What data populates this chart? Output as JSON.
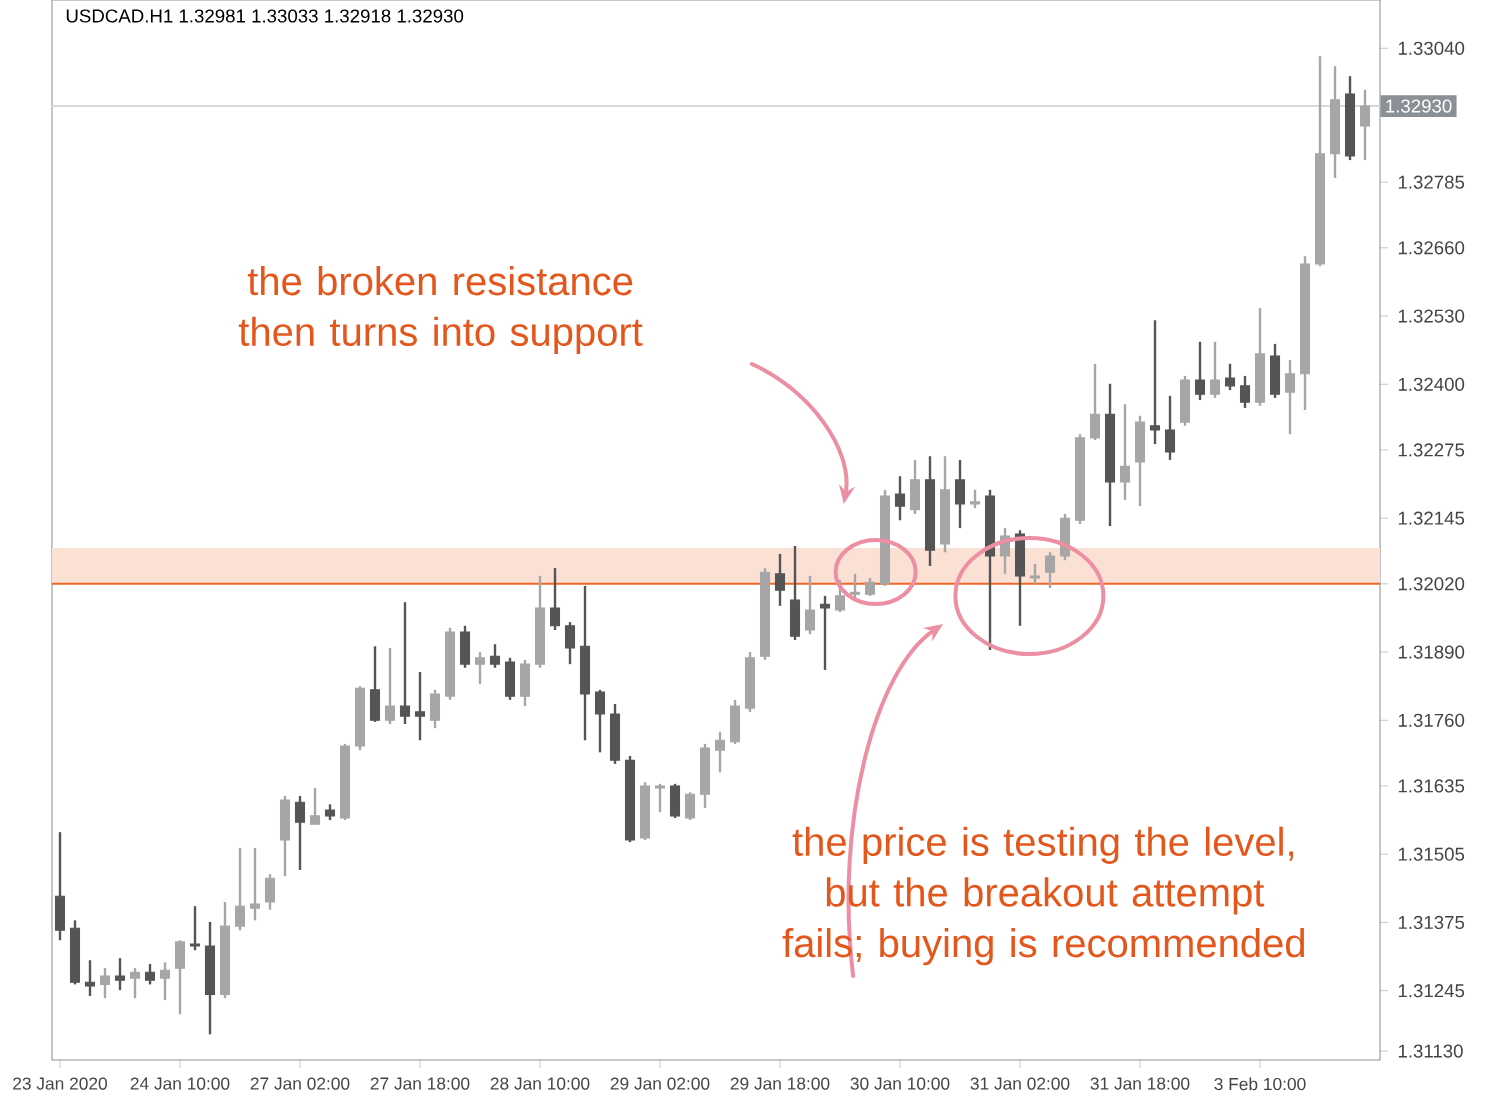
{
  "chart_data": {
    "type": "candlestick",
    "title": "USDCAD.H1 1.32981 1.33033 1.32918 1.32930",
    "categories": [
      "23 Jan 2020",
      null,
      null,
      null,
      null,
      null,
      null,
      null,
      "24 Jan 10:00",
      null,
      null,
      null,
      null,
      null,
      null,
      null,
      "27 Jan 02:00",
      null,
      null,
      null,
      null,
      null,
      null,
      null,
      "27 Jan 18:00",
      null,
      null,
      null,
      null,
      null,
      null,
      null,
      "28 Jan 10:00",
      null,
      null,
      null,
      null,
      null,
      null,
      null,
      "29 Jan 02:00",
      null,
      null,
      null,
      null,
      null,
      null,
      null,
      "29 Jan 18:00",
      null,
      null,
      null,
      null,
      null,
      null,
      null,
      "30 Jan 10:00",
      null,
      null,
      null,
      null,
      null,
      null,
      null,
      "31 Jan 02:00",
      null,
      null,
      null,
      null,
      null,
      null,
      null,
      "31 Jan 18:00",
      null,
      null,
      null,
      null,
      null,
      null,
      null,
      "3 Feb 10:00",
      null,
      null,
      null,
      null,
      null,
      null,
      null
    ],
    "ohlc": [
      [
        1.31425,
        1.31547,
        1.31341,
        1.3136
      ],
      [
        1.31364,
        1.31379,
        1.31257,
        1.31261
      ],
      [
        1.31261,
        1.31303,
        1.31235,
        1.31254
      ],
      [
        1.31257,
        1.31288,
        1.31231,
        1.31273
      ],
      [
        1.31273,
        1.31307,
        1.31246,
        1.31265
      ],
      [
        1.31269,
        1.31288,
        1.31231,
        1.3128
      ],
      [
        1.3128,
        1.31296,
        1.31257,
        1.31265
      ],
      [
        1.31269,
        1.31299,
        1.31227,
        1.31284
      ],
      [
        1.31288,
        1.31341,
        1.312,
        1.31338
      ],
      [
        1.31334,
        1.31406,
        1.31322,
        1.3133
      ],
      [
        1.3133,
        1.31376,
        1.31162,
        1.31238
      ],
      [
        1.31238,
        1.31414,
        1.31231,
        1.31368
      ],
      [
        1.31368,
        1.31517,
        1.3136,
        1.31406
      ],
      [
        1.31402,
        1.31517,
        1.31379,
        1.3141
      ],
      [
        1.31414,
        1.31467,
        1.31399,
        1.31459
      ],
      [
        1.31532,
        1.31616,
        1.31463,
        1.31608
      ],
      [
        1.31604,
        1.31616,
        1.31475,
        1.31566
      ],
      [
        1.31562,
        1.31631,
        1.31562,
        1.31578
      ],
      [
        1.31589,
        1.316,
        1.3157,
        1.31578
      ],
      [
        1.31574,
        1.31715,
        1.3157,
        1.31711
      ],
      [
        1.31711,
        1.31825,
        1.31703,
        1.31821
      ],
      [
        1.31818,
        1.31901,
        1.31757,
        1.3176
      ],
      [
        1.3176,
        1.31898,
        1.31753,
        1.31787
      ],
      [
        1.31787,
        1.31985,
        1.31753,
        1.31768
      ],
      [
        1.31776,
        1.31852,
        1.31722,
        1.31768
      ],
      [
        1.3176,
        1.31818,
        1.31745,
        1.3181
      ],
      [
        1.31806,
        1.31936,
        1.31799,
        1.31928
      ],
      [
        1.31928,
        1.3194,
        1.3186,
        1.31867
      ],
      [
        1.31867,
        1.3189,
        1.31829,
        1.31879
      ],
      [
        1.31882,
        1.31905,
        1.3186,
        1.31867
      ],
      [
        1.31871,
        1.31879,
        1.31799,
        1.31806
      ],
      [
        1.31806,
        1.31875,
        1.31787,
        1.31867
      ],
      [
        1.31867,
        1.32035,
        1.3186,
        1.31974
      ],
      [
        1.31974,
        1.3205,
        1.31932,
        1.3194
      ],
      [
        1.3194,
        1.31947,
        1.31867,
        1.31898
      ],
      [
        1.31901,
        1.32016,
        1.31722,
        1.3181
      ],
      [
        1.31814,
        1.31818,
        1.31699,
        1.31772
      ],
      [
        1.31772,
        1.31791,
        1.31677,
        1.31684
      ],
      [
        1.31684,
        1.31692,
        1.31528,
        1.31532
      ],
      [
        1.31536,
        1.31642,
        1.31532,
        1.31635
      ],
      [
        1.31631,
        1.31639,
        1.31585,
        1.31635
      ],
      [
        1.31635,
        1.31639,
        1.31574,
        1.31578
      ],
      [
        1.31574,
        1.31623,
        1.3157,
        1.31619
      ],
      [
        1.31619,
        1.31715,
        1.31593,
        1.31707
      ],
      [
        1.31703,
        1.31738,
        1.31661,
        1.31722
      ],
      [
        1.31719,
        1.31799,
        1.31715,
        1.31787
      ],
      [
        1.31783,
        1.3189,
        1.31776,
        1.31879
      ],
      [
        1.31882,
        1.3205,
        1.31875,
        1.32042
      ],
      [
        1.32039,
        1.32077,
        1.31978,
        1.32008
      ],
      [
        1.31989,
        1.32092,
        1.31913,
        1.3192
      ],
      [
        1.31932,
        1.32035,
        1.31924,
        1.3197
      ],
      [
        1.31981,
        1.31997,
        1.31856,
        1.31974
      ],
      [
        1.3197,
        1.32027,
        1.31966,
        1.31997
      ],
      [
        1.32,
        1.32039,
        1.31993,
        1.32004
      ],
      [
        1.32,
        1.32031,
        1.31997,
        1.32023
      ],
      [
        1.3202,
        1.32199,
        1.32016,
        1.32187
      ],
      [
        1.32191,
        1.32225,
        1.32141,
        1.32168
      ],
      [
        1.32161,
        1.32256,
        1.32153,
        1.32218
      ],
      [
        1.32218,
        1.32263,
        1.32054,
        1.32084
      ],
      [
        1.32096,
        1.32263,
        1.3208,
        1.32199
      ],
      [
        1.32218,
        1.32256,
        1.32126,
        1.32172
      ],
      [
        1.32172,
        1.32199,
        1.32164,
        1.32176
      ],
      [
        1.32187,
        1.32199,
        1.31894,
        1.32073
      ],
      [
        1.32073,
        1.32126,
        1.32039,
        1.32111
      ],
      [
        1.32115,
        1.32122,
        1.3194,
        1.32035
      ],
      [
        1.32031,
        1.32058,
        1.3202,
        1.32035
      ],
      [
        1.32042,
        1.3208,
        1.32012,
        1.32073
      ],
      [
        1.32073,
        1.32153,
        1.32065,
        1.32145
      ],
      [
        1.32141,
        1.32305,
        1.32134,
        1.32298
      ],
      [
        1.32298,
        1.32439,
        1.32294,
        1.32343
      ],
      [
        1.32343,
        1.32401,
        1.3213,
        1.32214
      ],
      [
        1.32214,
        1.32362,
        1.3218,
        1.32244
      ],
      [
        1.32252,
        1.3234,
        1.32168,
        1.32328
      ],
      [
        1.32321,
        1.32522,
        1.32286,
        1.32313
      ],
      [
        1.32313,
        1.32378,
        1.32256,
        1.32271
      ],
      [
        1.32328,
        1.32416,
        1.32321,
        1.32408
      ],
      [
        1.32408,
        1.32481,
        1.3237,
        1.32381
      ],
      [
        1.32381,
        1.32481,
        1.32374,
        1.32408
      ],
      [
        1.32412,
        1.32439,
        1.32389,
        1.32397
      ],
      [
        1.32397,
        1.32416,
        1.32355,
        1.32366
      ],
      [
        1.32366,
        1.32545,
        1.32359,
        1.32458
      ],
      [
        1.32454,
        1.32477,
        1.32374,
        1.32381
      ],
      [
        1.32385,
        1.32446,
        1.32305,
        1.3242
      ],
      [
        1.3242,
        1.32644,
        1.32351,
        1.32629
      ],
      [
        1.32629,
        1.33025,
        1.32625,
        1.32839
      ],
      [
        1.32839,
        1.33006,
        1.32793,
        1.32942
      ],
      [
        1.32953,
        1.32987,
        1.32827,
        1.32835
      ],
      [
        1.32892,
        1.32961,
        1.32827,
        1.3293
      ]
    ],
    "colors": [
      "#555555",
      "#555555",
      "#555555",
      "#a6a6a6",
      "#555555",
      "#a6a6a6",
      "#555555",
      "#a6a6a6",
      "#a6a6a6",
      "#555555",
      "#555555",
      "#a6a6a6",
      "#a6a6a6",
      "#a6a6a6",
      "#a6a6a6",
      "#a6a6a6",
      "#555555",
      "#a6a6a6",
      "#555555",
      "#a6a6a6",
      "#a6a6a6",
      "#555555",
      "#a6a6a6",
      "#555555",
      "#555555",
      "#a6a6a6",
      "#a6a6a6",
      "#555555",
      "#a6a6a6",
      "#555555",
      "#555555",
      "#a6a6a6",
      "#a6a6a6",
      "#555555",
      "#555555",
      "#555555",
      "#555555",
      "#555555",
      "#555555",
      "#a6a6a6",
      "#a6a6a6",
      "#555555",
      "#a6a6a6",
      "#a6a6a6",
      "#a6a6a6",
      "#a6a6a6",
      "#a6a6a6",
      "#a6a6a6",
      "#555555",
      "#555555",
      "#a6a6a6",
      "#555555",
      "#a6a6a6",
      "#a6a6a6",
      "#a6a6a6",
      "#a6a6a6",
      "#555555",
      "#a6a6a6",
      "#555555",
      "#a6a6a6",
      "#555555",
      "#a6a6a6",
      "#555555",
      "#a6a6a6",
      "#555555",
      "#a6a6a6",
      "#a6a6a6",
      "#a6a6a6",
      "#a6a6a6",
      "#a6a6a6",
      "#555555",
      "#a6a6a6",
      "#a6a6a6",
      "#555555",
      "#555555",
      "#a6a6a6",
      "#555555",
      "#a6a6a6",
      "#555555",
      "#555555",
      "#a6a6a6",
      "#555555",
      "#a6a6a6",
      "#a6a6a6",
      "#a6a6a6",
      "#a6a6a6",
      "#555555",
      "#a6a6a6"
    ],
    "ylim": [
      1.31113,
      1.33132
    ],
    "yticks": [
      {
        "value": 1.3304,
        "label": "1.33040"
      },
      {
        "value": 1.32785,
        "label": "1.32785"
      },
      {
        "value": 1.3266,
        "label": "1.32660"
      },
      {
        "value": 1.3253,
        "label": "1.32530"
      },
      {
        "value": 1.324,
        "label": "1.32400"
      },
      {
        "value": 1.32275,
        "label": "1.32275"
      },
      {
        "value": 1.32145,
        "label": "1.32145"
      },
      {
        "value": 1.3202,
        "label": "1.32020"
      },
      {
        "value": 1.3189,
        "label": "1.31890"
      },
      {
        "value": 1.3176,
        "label": "1.31760"
      },
      {
        "value": 1.31635,
        "label": "1.31635"
      },
      {
        "value": 1.31505,
        "label": "1.31505"
      },
      {
        "value": 1.31375,
        "label": "1.31375"
      },
      {
        "value": 1.31245,
        "label": "1.31245"
      },
      {
        "value": 1.3113,
        "label": "1.31130"
      }
    ],
    "bands": [
      {
        "axis": "y",
        "from": 1.3202,
        "to": 1.32088,
        "color": "#fbe0d4"
      }
    ],
    "ref_lines": [
      {
        "axis": "y",
        "value": 1.3202,
        "color": "#f26522",
        "line_style": "solid"
      },
      {
        "axis": "y",
        "value": 1.3293,
        "label": "1.32930",
        "color": "#d8d8d8",
        "line_style": "solid"
      }
    ],
    "annotations": [
      "the broken resistance then turns into support",
      "the price is testing the level, but the breakout attempt fails; buying is recommended"
    ]
  }
}
